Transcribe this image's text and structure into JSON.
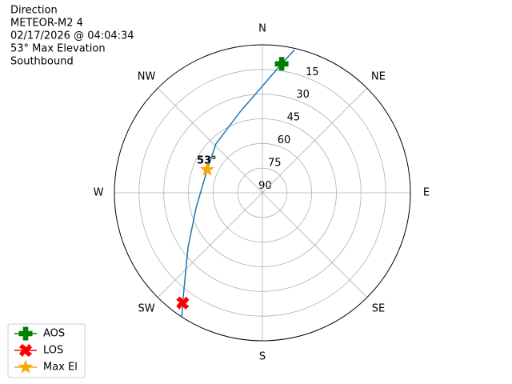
{
  "chart_data": {
    "type": "polar",
    "title_lines": [
      "Direction",
      "METEOR-M2 4",
      "02/17/2026 @ 04:04:34",
      "53° Max Elevation",
      "Southbound"
    ],
    "thetaticks": [
      {
        "value": 0,
        "label": "N"
      },
      {
        "value": 45,
        "label": "NE"
      },
      {
        "value": 90,
        "label": "E"
      },
      {
        "value": 135,
        "label": "SE"
      },
      {
        "value": 180,
        "label": "S"
      },
      {
        "value": 225,
        "label": "SW"
      },
      {
        "value": 270,
        "label": "W"
      },
      {
        "value": 315,
        "label": "NW"
      }
    ],
    "rlim": [
      90,
      0
    ],
    "rticks": [
      15,
      30,
      45,
      60,
      75,
      90
    ],
    "grid": true,
    "track": {
      "color": "#1f77b4",
      "azimuth": [
        12.6,
        8.5,
        344.5,
        316.4,
        292.8,
        257.1,
        233.4,
        215.9,
        213
      ],
      "elevation": [
        1,
        10.7,
        39,
        49,
        53.6,
        48.6,
        33.6,
        7.3,
        0
      ]
    },
    "markers": [
      {
        "name": "AOS",
        "color": "green",
        "shape": "plus",
        "azimuth": 8.5,
        "elevation": 10.7
      },
      {
        "name": "LOS",
        "color": "red",
        "shape": "x",
        "azimuth": 215.9,
        "elevation": 7.3
      },
      {
        "name": "Max El",
        "color": "orange",
        "shape": "star",
        "azimuth": 292.8,
        "elevation": 53.6
      }
    ],
    "annotation": "53°",
    "legend": "lower-left"
  }
}
